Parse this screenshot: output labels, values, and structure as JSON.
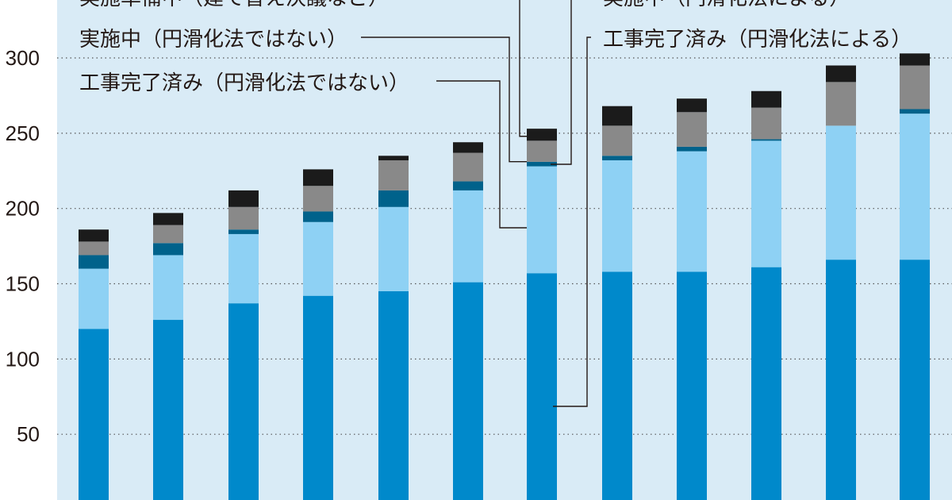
{
  "chart_data": {
    "type": "bar",
    "stacked": true,
    "title": "",
    "xlabel": "",
    "ylabel": "",
    "ylim": [
      0,
      320
    ],
    "y_ticks": [
      50,
      100,
      150,
      200,
      250,
      300
    ],
    "grid": true,
    "categories": [
      "",
      "",
      "",
      "",
      "",
      "",
      "",
      "",
      "",
      "",
      "",
      ""
    ],
    "series": [
      {
        "name": "工事完了済み（円滑化法による）",
        "color": "#0089cb",
        "values": [
          120,
          126,
          137,
          142,
          145,
          151,
          157,
          158,
          158,
          161,
          166,
          166
        ]
      },
      {
        "name": "工事完了済み（円滑化法ではない）",
        "color": "#8ed1f4",
        "values": [
          40,
          43,
          46,
          49,
          56,
          61,
          71,
          74,
          80,
          84,
          89,
          97
        ]
      },
      {
        "name": "実施中（円滑化法ではない）",
        "color": "#00628b",
        "values": [
          9,
          8,
          3,
          7,
          11,
          6,
          3,
          3,
          3,
          1,
          0,
          3
        ]
      },
      {
        "name": "実施中（円滑化法による）",
        "color": "#898989",
        "values": [
          9,
          12,
          15,
          17,
          20,
          19,
          14,
          20,
          23,
          21,
          29,
          29
        ]
      },
      {
        "name": "実施準備中（建て替え決議など）",
        "color": "#1b1b1b",
        "values": [
          8,
          8,
          11,
          11,
          3,
          7,
          8,
          13,
          9,
          11,
          11,
          8
        ]
      }
    ],
    "annotations": [
      {
        "id": "prep",
        "text": "実施準備中（建て替え決議など）"
      },
      {
        "id": "active_law",
        "text": "実施中（円滑化法による）"
      },
      {
        "id": "active_nolaw",
        "text": "実施中（円滑化法ではない）"
      },
      {
        "id": "done_law",
        "text": "工事完了済み（円滑化法による）"
      },
      {
        "id": "done_nolaw",
        "text": "工事完了済み（円滑化法ではない）"
      }
    ],
    "colors": {
      "plot_background": "#d9ebf6",
      "grid": "#555555",
      "leader_line": "#231815"
    }
  }
}
